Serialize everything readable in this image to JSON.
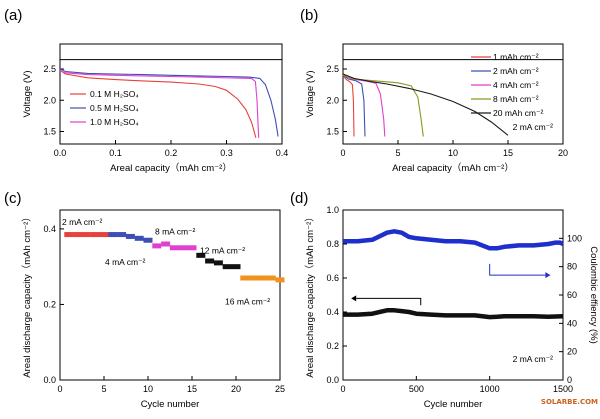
{
  "watermark": "SOLARBE.COM",
  "chart_data": [
    {
      "panel": "(a)",
      "type": "line",
      "xlabel": "Areal capacity（mAh cm⁻²）",
      "ylabel": "Voltage (V)",
      "xlim": [
        0,
        0.4
      ],
      "ylim": [
        1.3,
        2.9
      ],
      "xticks": [
        "0.0",
        "0.1",
        "0.2",
        "0.3",
        "0.4"
      ],
      "yticks": [
        "1.5",
        "2.0",
        "2.5"
      ],
      "legend_position": "left",
      "series": [
        {
          "name": "0.1 M H₂SO₄",
          "color": "#e8413c",
          "points": [
            [
              0,
              2.48
            ],
            [
              0.01,
              2.42
            ],
            [
              0.05,
              2.36
            ],
            [
              0.1,
              2.33
            ],
            [
              0.15,
              2.31
            ],
            [
              0.2,
              2.29
            ],
            [
              0.25,
              2.26
            ],
            [
              0.28,
              2.22
            ],
            [
              0.3,
              2.16
            ],
            [
              0.32,
              2.02
            ],
            [
              0.335,
              1.85
            ],
            [
              0.345,
              1.65
            ],
            [
              0.353,
              1.4
            ]
          ]
        },
        {
          "name": "0.5 M H₂SO₄",
          "color": "#3d4fb5",
          "points": [
            [
              0,
              2.5
            ],
            [
              0.01,
              2.46
            ],
            [
              0.05,
              2.43
            ],
            [
              0.1,
              2.42
            ],
            [
              0.15,
              2.41
            ],
            [
              0.2,
              2.4
            ],
            [
              0.25,
              2.39
            ],
            [
              0.3,
              2.38
            ],
            [
              0.34,
              2.37
            ],
            [
              0.36,
              2.35
            ],
            [
              0.37,
              2.25
            ],
            [
              0.38,
              2.0
            ],
            [
              0.388,
              1.7
            ],
            [
              0.393,
              1.42
            ]
          ]
        },
        {
          "name": "1.0 M H₂SO₄",
          "color": "#e040d0",
          "points": [
            [
              0,
              2.47
            ],
            [
              0.01,
              2.44
            ],
            [
              0.05,
              2.41
            ],
            [
              0.1,
              2.4
            ],
            [
              0.15,
              2.39
            ],
            [
              0.2,
              2.38
            ],
            [
              0.25,
              2.37
            ],
            [
              0.3,
              2.36
            ],
            [
              0.345,
              2.35
            ],
            [
              0.352,
              2.3
            ],
            [
              0.355,
              2.0
            ],
            [
              0.357,
              1.6
            ],
            [
              0.358,
              1.4
            ]
          ]
        }
      ]
    },
    {
      "panel": "(b)",
      "type": "line",
      "xlabel": "Areal capacity（mAh cm⁻²）",
      "ylabel": "Voltage (V)",
      "xlim": [
        0,
        20
      ],
      "ylim": [
        1.3,
        2.9
      ],
      "xticks": [
        "0",
        "5",
        "10",
        "15",
        "20"
      ],
      "yticks": [
        "1.5",
        "2.0",
        "2.5"
      ],
      "annotation": "2 mA cm⁻²",
      "legend_position": "right",
      "series": [
        {
          "name": "1 mAh cm⁻²",
          "color": "#e8413c",
          "points": [
            [
              0,
              2.4
            ],
            [
              0.3,
              2.33
            ],
            [
              0.6,
              2.3
            ],
            [
              0.85,
              2.25
            ],
            [
              0.95,
              2.0
            ],
            [
              1.0,
              1.42
            ]
          ]
        },
        {
          "name": "2 mAh cm⁻²",
          "color": "#3d4fb5",
          "points": [
            [
              0,
              2.4
            ],
            [
              0.5,
              2.34
            ],
            [
              1.2,
              2.31
            ],
            [
              1.7,
              2.26
            ],
            [
              1.9,
              2.0
            ],
            [
              2.0,
              1.42
            ]
          ]
        },
        {
          "name": "4 mAh cm⁻²",
          "color": "#e040d0",
          "points": [
            [
              0,
              2.41
            ],
            [
              0.8,
              2.34
            ],
            [
              2.0,
              2.31
            ],
            [
              3.0,
              2.27
            ],
            [
              3.4,
              2.1
            ],
            [
              3.7,
              1.7
            ],
            [
              3.8,
              1.42
            ]
          ]
        },
        {
          "name": "8 mAh cm⁻²",
          "color": "#8a9a20",
          "points": [
            [
              0,
              2.4
            ],
            [
              1,
              2.34
            ],
            [
              3,
              2.31
            ],
            [
              5,
              2.28
            ],
            [
              6.2,
              2.23
            ],
            [
              6.8,
              2.05
            ],
            [
              7.1,
              1.7
            ],
            [
              7.3,
              1.42
            ]
          ]
        },
        {
          "name": "20 mAh cm⁻²",
          "color": "#1a1a1a",
          "points": [
            [
              0,
              2.42
            ],
            [
              1,
              2.35
            ],
            [
              2.5,
              2.3
            ],
            [
              4,
              2.26
            ],
            [
              6,
              2.19
            ],
            [
              8,
              2.1
            ],
            [
              10,
              1.98
            ],
            [
              12,
              1.82
            ],
            [
              13.5,
              1.65
            ],
            [
              15,
              1.44
            ]
          ]
        }
      ]
    },
    {
      "panel": "(c)",
      "type": "scatter",
      "xlabel": "Cycle number",
      "ylabel": "Areal discharge capacity（mAh cm⁻²）",
      "xlim": [
        0,
        25
      ],
      "ylim": [
        0,
        0.45
      ],
      "xticks": [
        "0",
        "5",
        "10",
        "15",
        "20",
        "25"
      ],
      "yticks": [
        "0.0",
        "0.2",
        "0.4"
      ],
      "series": [
        {
          "name": "2 mA cm⁻²",
          "color": "#e8413c",
          "label_color": "#e8413c",
          "x": [
            1,
            2,
            3,
            4,
            5
          ],
          "values": [
            0.385,
            0.385,
            0.385,
            0.385,
            0.385
          ]
        },
        {
          "name": "4 mA cm⁻²",
          "color": "#3d4fb5",
          "label_color": "#3d4fb5",
          "x": [
            6,
            7,
            8,
            9,
            10
          ],
          "values": [
            0.385,
            0.385,
            0.38,
            0.375,
            0.37
          ]
        },
        {
          "name": "8 mA cm⁻²",
          "color": "#e040d0",
          "label_color": "#e040d0",
          "x": [
            11,
            12,
            13,
            14,
            15
          ],
          "values": [
            0.355,
            0.36,
            0.35,
            0.35,
            0.35
          ]
        },
        {
          "name": "12 mA cm⁻²",
          "color": "#111111",
          "label_color": "#111111",
          "x": [
            16,
            17,
            18,
            19,
            20
          ],
          "values": [
            0.33,
            0.315,
            0.31,
            0.3,
            0.3
          ]
        },
        {
          "name": "16 mA cm⁻²",
          "color": "#f0921c",
          "label_color": "#f0921c",
          "x": [
            21,
            22,
            23,
            24,
            25
          ],
          "values": [
            0.27,
            0.27,
            0.27,
            0.27,
            0.265
          ]
        }
      ]
    },
    {
      "panel": "(d)",
      "type": "line",
      "xlabel": "Cycle number",
      "ylabel": "Areal discharge capacity（mAh cm⁻²）",
      "ylabel_right": "Coulombic effiency (%)",
      "xlim": [
        0,
        1500
      ],
      "ylim": [
        0,
        1.0
      ],
      "ylim_right": [
        0,
        120
      ],
      "xticks": [
        "0",
        "500",
        "1000",
        "1500"
      ],
      "yticks": [
        "0.0",
        "0.2",
        "0.4",
        "0.6",
        "0.8",
        "1.0"
      ],
      "yticks_right": [
        "0",
        "20",
        "40",
        "60",
        "80",
        "100"
      ],
      "annotation": "2 mA cm⁻²",
      "series": [
        {
          "name": "Areal discharge capacity",
          "color": "#111111",
          "axis": "left",
          "x": [
            0,
            100,
            200,
            300,
            350,
            400,
            450,
            500,
            600,
            700,
            800,
            900,
            1000,
            1050,
            1100,
            1200,
            1300,
            1400,
            1500
          ],
          "values": [
            0.385,
            0.385,
            0.39,
            0.41,
            0.41,
            0.405,
            0.4,
            0.39,
            0.385,
            0.38,
            0.38,
            0.38,
            0.37,
            0.372,
            0.375,
            0.375,
            0.375,
            0.372,
            0.375
          ]
        },
        {
          "name": "Coulombic effiency",
          "color": "#1f2fcc",
          "axis": "right",
          "x": [
            0,
            100,
            200,
            300,
            350,
            400,
            450,
            500,
            600,
            700,
            800,
            900,
            1000,
            1050,
            1100,
            1200,
            1300,
            1400,
            1450,
            1480,
            1500
          ],
          "values": [
            98,
            98,
            99,
            104,
            105,
            104,
            101,
            100,
            99,
            98,
            98,
            97,
            93,
            93,
            94,
            95,
            95,
            96,
            97,
            97,
            96
          ]
        }
      ]
    }
  ]
}
